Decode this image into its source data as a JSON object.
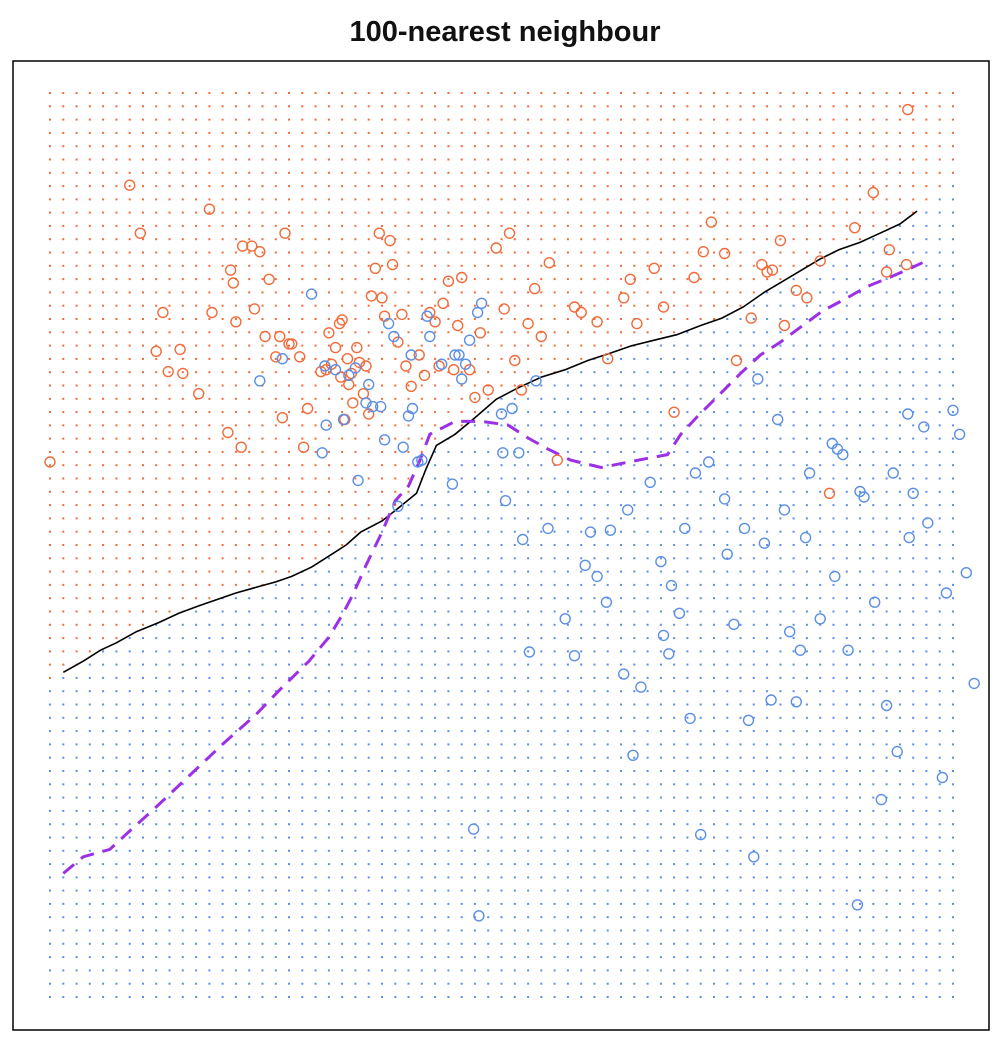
{
  "chart_data": {
    "type": "scatter",
    "title": "100-nearest neighbour",
    "xlabel": "",
    "ylabel": "",
    "xlim": [
      -2.6,
      4.2
    ],
    "ylim": [
      -2.0,
      2.9
    ],
    "grid": true,
    "legend": "none",
    "colors": {
      "class_orange": "#f26b3a",
      "class_blue": "#5b8fe6",
      "knn_boundary": "#000000",
      "bayes_boundary": "#9b30e6",
      "frame": "#000000"
    },
    "background_grid": {
      "nx": 69,
      "ny": 69,
      "xrange": [
        -2.6,
        4.2
      ],
      "yrange": [
        -2.0,
        2.9
      ]
    },
    "series": [
      {
        "name": "",
        "color": "orange",
        "points": [
          [
            -2.6,
            0.9
          ],
          [
            -2.0,
            2.4
          ],
          [
            -1.92,
            2.14
          ],
          [
            -1.8,
            1.5
          ],
          [
            -1.75,
            1.71
          ],
          [
            -1.71,
            1.39
          ],
          [
            -1.62,
            1.51
          ],
          [
            -1.6,
            1.38
          ],
          [
            -1.48,
            1.27
          ],
          [
            -1.4,
            2.27
          ],
          [
            -1.38,
            1.71
          ],
          [
            -1.26,
            1.06
          ],
          [
            -1.24,
            1.94
          ],
          [
            -1.22,
            1.87
          ],
          [
            -1.2,
            1.66
          ],
          [
            -1.16,
            0.98
          ],
          [
            -1.15,
            2.07
          ],
          [
            -1.08,
            2.07
          ],
          [
            -1.06,
            1.73
          ],
          [
            -1.02,
            2.04
          ],
          [
            -0.98,
            1.58
          ],
          [
            -0.95,
            1.89
          ],
          [
            -0.9,
            1.47
          ],
          [
            -0.87,
            1.58
          ],
          [
            -0.85,
            1.14
          ],
          [
            -0.83,
            2.14
          ],
          [
            -0.8,
            1.54
          ],
          [
            -0.78,
            1.54
          ],
          [
            -0.72,
            1.47
          ],
          [
            -0.69,
            0.98
          ],
          [
            -0.66,
            1.19
          ],
          [
            -0.56,
            1.39
          ],
          [
            -0.52,
            1.4
          ],
          [
            -0.5,
            1.6
          ],
          [
            -0.48,
            1.43
          ],
          [
            -0.45,
            1.52
          ],
          [
            -0.42,
            1.65
          ],
          [
            -0.41,
            1.36
          ],
          [
            -0.4,
            1.67
          ],
          [
            -0.38,
            1.13
          ],
          [
            -0.36,
            1.46
          ],
          [
            -0.35,
            1.32
          ],
          [
            -0.33,
            1.38
          ],
          [
            -0.32,
            1.22
          ],
          [
            -0.29,
            1.52
          ],
          [
            -0.27,
            1.44
          ],
          [
            -0.24,
            1.27
          ],
          [
            -0.22,
            1.42
          ],
          [
            -0.2,
            1.16
          ],
          [
            -0.18,
            1.8
          ],
          [
            -0.15,
            1.95
          ],
          [
            -0.12,
            2.14
          ],
          [
            -0.1,
            1.79
          ],
          [
            -0.08,
            1.69
          ],
          [
            -0.04,
            2.1
          ],
          [
            -0.02,
            1.97
          ],
          [
            0.02,
            1.55
          ],
          [
            0.05,
            1.7
          ],
          [
            0.08,
            1.42
          ],
          [
            0.12,
            1.31
          ],
          [
            0.18,
            1.48
          ],
          [
            0.22,
            1.37
          ],
          [
            0.26,
            1.71
          ],
          [
            0.3,
            1.66
          ],
          [
            0.33,
            1.42
          ],
          [
            0.36,
            1.76
          ],
          [
            0.4,
            1.88
          ],
          [
            0.44,
            1.4
          ],
          [
            0.47,
            1.64
          ],
          [
            0.5,
            1.9
          ],
          [
            0.56,
            1.4
          ],
          [
            0.6,
            1.25
          ],
          [
            0.64,
            1.6
          ],
          [
            0.7,
            1.29
          ],
          [
            0.76,
            2.06
          ],
          [
            0.82,
            1.73
          ],
          [
            0.86,
            2.14
          ],
          [
            0.9,
            1.45
          ],
          [
            0.95,
            1.29
          ],
          [
            1.0,
            1.65
          ],
          [
            1.05,
            1.84
          ],
          [
            1.1,
            1.58
          ],
          [
            1.16,
            1.98
          ],
          [
            1.22,
            0.91
          ],
          [
            1.35,
            1.74
          ],
          [
            1.4,
            1.71
          ],
          [
            1.52,
            1.66
          ],
          [
            1.6,
            1.46
          ],
          [
            1.72,
            1.79
          ],
          [
            1.77,
            1.89
          ],
          [
            1.82,
            1.65
          ],
          [
            1.95,
            1.95
          ],
          [
            2.02,
            1.74
          ],
          [
            2.1,
            1.17
          ],
          [
            2.25,
            1.9
          ],
          [
            2.32,
            2.04
          ],
          [
            2.38,
            2.2
          ],
          [
            2.48,
            2.03
          ],
          [
            2.57,
            1.45
          ],
          [
            2.68,
            1.68
          ],
          [
            2.76,
            1.97
          ],
          [
            2.8,
            1.93
          ],
          [
            2.84,
            1.94
          ],
          [
            2.9,
            2.1
          ],
          [
            2.93,
            1.64
          ],
          [
            3.02,
            1.83
          ],
          [
            3.1,
            1.79
          ],
          [
            3.2,
            1.99
          ],
          [
            3.27,
            0.73
          ],
          [
            3.46,
            2.17
          ],
          [
            3.6,
            2.36
          ],
          [
            3.7,
            1.93
          ],
          [
            3.72,
            2.05
          ],
          [
            3.85,
            1.97
          ],
          [
            3.86,
            2.81
          ]
        ]
      },
      {
        "name": "",
        "color": "blue",
        "points": [
          [
            -1.02,
            1.34
          ],
          [
            -0.85,
            1.46
          ],
          [
            -0.63,
            1.81
          ],
          [
            -0.55,
            0.95
          ],
          [
            -0.53,
            1.42
          ],
          [
            -0.52,
            1.1
          ],
          [
            -0.45,
            1.4
          ],
          [
            -0.39,
            1.13
          ],
          [
            -0.35,
            1.37
          ],
          [
            -0.3,
            1.41
          ],
          [
            -0.28,
            0.8
          ],
          [
            -0.22,
            1.22
          ],
          [
            -0.2,
            1.32
          ],
          [
            -0.17,
            1.2
          ],
          [
            -0.11,
            1.2
          ],
          [
            -0.08,
            1.02
          ],
          [
            -0.05,
            1.65
          ],
          [
            -0.01,
            1.58
          ],
          [
            0.02,
            0.66
          ],
          [
            0.06,
            0.98
          ],
          [
            0.1,
            1.15
          ],
          [
            0.12,
            1.48
          ],
          [
            0.13,
            1.19
          ],
          [
            0.17,
            0.9
          ],
          [
            0.2,
            0.91
          ],
          [
            0.24,
            1.69
          ],
          [
            0.26,
            1.58
          ],
          [
            0.35,
            1.43
          ],
          [
            0.43,
            0.78
          ],
          [
            0.45,
            1.48
          ],
          [
            0.48,
            1.48
          ],
          [
            0.5,
            1.35
          ],
          [
            0.53,
            1.43
          ],
          [
            0.56,
            1.56
          ],
          [
            0.59,
            -1.09
          ],
          [
            0.62,
            1.71
          ],
          [
            0.63,
            -1.56
          ],
          [
            0.65,
            1.76
          ],
          [
            0.8,
            1.16
          ],
          [
            0.81,
            0.95
          ],
          [
            0.83,
            0.69
          ],
          [
            0.88,
            1.19
          ],
          [
            0.93,
            0.95
          ],
          [
            0.96,
            0.48
          ],
          [
            1.01,
            -0.13
          ],
          [
            1.06,
            1.34
          ],
          [
            1.15,
            0.54
          ],
          [
            1.28,
            0.05
          ],
          [
            1.35,
            -0.15
          ],
          [
            1.43,
            0.34
          ],
          [
            1.47,
            0.52
          ],
          [
            1.52,
            0.28
          ],
          [
            1.59,
            0.14
          ],
          [
            1.62,
            0.53
          ],
          [
            1.72,
            -0.25
          ],
          [
            1.75,
            0.64
          ],
          [
            1.79,
            -0.69
          ],
          [
            1.85,
            -0.32
          ],
          [
            1.92,
            0.79
          ],
          [
            2.0,
            0.36
          ],
          [
            2.02,
            -0.04
          ],
          [
            2.06,
            -0.14
          ],
          [
            2.08,
            0.23
          ],
          [
            2.14,
            0.08
          ],
          [
            2.18,
            0.54
          ],
          [
            2.22,
            -0.49
          ],
          [
            2.26,
            0.84
          ],
          [
            2.3,
            -1.12
          ],
          [
            2.36,
            0.9
          ],
          [
            2.48,
            0.7
          ],
          [
            2.5,
            0.4
          ],
          [
            2.55,
            0.02
          ],
          [
            2.63,
            0.54
          ],
          [
            2.66,
            -0.5
          ],
          [
            2.7,
            -1.24
          ],
          [
            2.73,
            1.35
          ],
          [
            2.78,
            0.46
          ],
          [
            2.83,
            -0.39
          ],
          [
            2.88,
            1.13
          ],
          [
            2.93,
            0.64
          ],
          [
            2.97,
            -0.02
          ],
          [
            3.02,
            -0.4
          ],
          [
            3.05,
            -0.12
          ],
          [
            3.09,
            0.49
          ],
          [
            3.12,
            0.84
          ],
          [
            3.2,
            0.05
          ],
          [
            3.29,
            1.0
          ],
          [
            3.31,
            0.28
          ],
          [
            3.33,
            0.97
          ],
          [
            3.37,
            0.94
          ],
          [
            3.41,
            -0.12
          ],
          [
            3.48,
            -1.5
          ],
          [
            3.5,
            0.74
          ],
          [
            3.53,
            0.71
          ],
          [
            3.61,
            0.14
          ],
          [
            3.66,
            -0.93
          ],
          [
            3.7,
            -0.42
          ],
          [
            3.75,
            0.84
          ],
          [
            3.78,
            -0.67
          ],
          [
            3.86,
            1.16
          ],
          [
            3.87,
            0.49
          ],
          [
            3.9,
            0.73
          ],
          [
            3.98,
            1.09
          ],
          [
            4.01,
            0.57
          ],
          [
            4.12,
            -0.81
          ],
          [
            4.15,
            0.19
          ],
          [
            4.2,
            1.18
          ],
          [
            4.25,
            1.05
          ],
          [
            4.3,
            0.3
          ],
          [
            4.36,
            -0.3
          ]
        ]
      }
    ],
    "decision_boundaries": [
      {
        "name": "",
        "style": "solid",
        "points": [
          [
            -2.5,
            -0.24
          ],
          [
            -2.35,
            -0.18
          ],
          [
            -2.22,
            -0.12
          ],
          [
            -2.1,
            -0.08
          ],
          [
            -1.95,
            -0.02
          ],
          [
            -1.78,
            0.03
          ],
          [
            -1.63,
            0.08
          ],
          [
            -1.48,
            0.12
          ],
          [
            -1.32,
            0.16
          ],
          [
            -1.2,
            0.19
          ],
          [
            -1.05,
            0.22
          ],
          [
            -0.9,
            0.25
          ],
          [
            -0.78,
            0.28
          ],
          [
            -0.63,
            0.33
          ],
          [
            -0.5,
            0.39
          ],
          [
            -0.37,
            0.45
          ],
          [
            -0.26,
            0.52
          ],
          [
            -0.1,
            0.58
          ],
          [
            0.04,
            0.66
          ],
          [
            0.16,
            0.73
          ],
          [
            0.23,
            0.86
          ],
          [
            0.31,
            0.99
          ],
          [
            0.45,
            1.05
          ],
          [
            0.6,
            1.14
          ],
          [
            0.76,
            1.24
          ],
          [
            0.92,
            1.3
          ],
          [
            1.1,
            1.36
          ],
          [
            1.28,
            1.4
          ],
          [
            1.45,
            1.45
          ],
          [
            1.62,
            1.49
          ],
          [
            1.78,
            1.53
          ],
          [
            1.95,
            1.56
          ],
          [
            2.12,
            1.59
          ],
          [
            2.3,
            1.64
          ],
          [
            2.46,
            1.68
          ],
          [
            2.62,
            1.74
          ],
          [
            2.78,
            1.82
          ],
          [
            2.92,
            1.88
          ],
          [
            3.06,
            1.94
          ],
          [
            3.2,
            2.0
          ],
          [
            3.34,
            2.05
          ],
          [
            3.5,
            2.09
          ],
          [
            3.65,
            2.14
          ],
          [
            3.8,
            2.19
          ],
          [
            3.93,
            2.26
          ]
        ]
      },
      {
        "name": "",
        "style": "dashed",
        "points": [
          [
            -2.5,
            -1.33
          ],
          [
            -2.35,
            -1.24
          ],
          [
            -2.15,
            -1.2
          ],
          [
            -2.0,
            -1.1
          ],
          [
            -1.8,
            -0.97
          ],
          [
            -1.55,
            -0.8
          ],
          [
            -1.3,
            -0.63
          ],
          [
            -1.05,
            -0.47
          ],
          [
            -0.85,
            -0.32
          ],
          [
            -0.65,
            -0.18
          ],
          [
            -0.5,
            -0.05
          ],
          [
            -0.4,
            0.07
          ],
          [
            -0.32,
            0.18
          ],
          [
            -0.22,
            0.34
          ],
          [
            -0.1,
            0.52
          ],
          [
            0.0,
            0.69
          ],
          [
            0.1,
            0.77
          ],
          [
            0.18,
            0.9
          ],
          [
            0.26,
            1.05
          ],
          [
            0.45,
            1.12
          ],
          [
            0.65,
            1.12
          ],
          [
            0.85,
            1.1
          ],
          [
            1.0,
            1.03
          ],
          [
            1.15,
            0.97
          ],
          [
            1.32,
            0.91
          ],
          [
            1.55,
            0.87
          ],
          [
            1.76,
            0.9
          ],
          [
            1.9,
            0.92
          ],
          [
            2.05,
            0.94
          ],
          [
            2.15,
            1.05
          ],
          [
            2.28,
            1.15
          ],
          [
            2.42,
            1.25
          ],
          [
            2.6,
            1.38
          ],
          [
            2.75,
            1.48
          ],
          [
            2.9,
            1.55
          ],
          [
            3.05,
            1.63
          ],
          [
            3.22,
            1.72
          ],
          [
            3.38,
            1.78
          ],
          [
            3.55,
            1.85
          ],
          [
            3.72,
            1.9
          ],
          [
            3.88,
            1.95
          ],
          [
            3.97,
            1.98
          ]
        ]
      }
    ]
  }
}
